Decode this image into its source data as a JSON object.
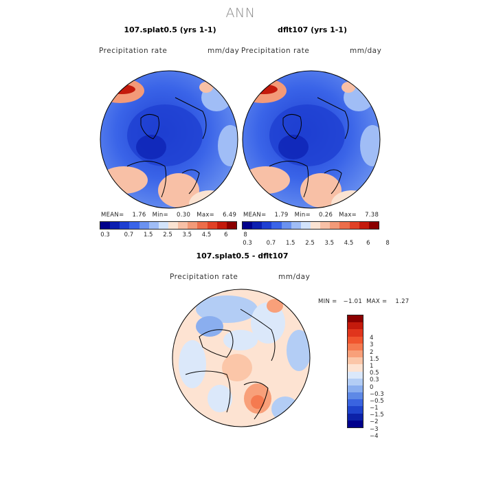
{
  "title": "ANN",
  "panels": [
    {
      "title": "107.splat0.5 (yrs 1-1)",
      "field": "Precipitation rate",
      "units": "mm/day",
      "stats": "MEAN=    1.76   Min=    0.30   Max=    6.49"
    },
    {
      "title": "dflt107 (yrs 1-1)",
      "field": "Precipitation rate",
      "units": "mm/day",
      "stats": "MEAN=    1.79   Min=    0.26   Max=    7.38"
    }
  ],
  "diff_panel": {
    "title": "107.splat0.5 - dflt107",
    "field": "Precipitation rate",
    "units": "mm/day",
    "stats": "MIN =   −1.01  MAX =    1.27"
  },
  "colorbar_abs": {
    "colors": [
      "#00008b",
      "#0c1fb0",
      "#1e3fd1",
      "#3a64e8",
      "#6b92f0",
      "#a0bdf6",
      "#d2e3fb",
      "#fbe3d2",
      "#f8c0a6",
      "#f39a78",
      "#ec6d4a",
      "#e04126",
      "#c41a0c",
      "#8b0000"
    ],
    "ticks": [
      "0.3",
      "0.7",
      "1.5",
      "2.5",
      "3.5",
      "4.5",
      "6",
      "8"
    ]
  },
  "colorbar_diff": {
    "colors": [
      "#8b0000",
      "#c41a0c",
      "#e0351c",
      "#f0552e",
      "#f57a50",
      "#f8a07a",
      "#fbc6a8",
      "#fde3d2",
      "#dbe8fa",
      "#b3cdf5",
      "#8aaeef",
      "#5e89e6",
      "#3a64e0",
      "#1f44cc",
      "#0c22a8",
      "#00008b"
    ],
    "ticks": [
      "4",
      "3",
      "2",
      "1.5",
      "1",
      "0.5",
      "0.3",
      "0",
      "−0.3",
      "−0.5",
      "−1",
      "−1.5",
      "−2",
      "−3",
      "−4"
    ]
  },
  "chart_data": {
    "type": "heatmap",
    "description_source": "polar stereographic precipitation maps; values shown only as color fields",
    "maps": [
      {
        "name": "107.splat0.5 (yrs 1-1)",
        "mean": 1.76,
        "min": 0.3,
        "max": 6.49,
        "units": "mm/day"
      },
      {
        "name": "dflt107 (yrs 1-1)",
        "mean": 1.79,
        "min": 0.26,
        "max": 7.38,
        "units": "mm/day"
      },
      {
        "name": "107.splat0.5 - dflt107",
        "min": -1.01,
        "max": 1.27,
        "units": "mm/day"
      }
    ]
  }
}
